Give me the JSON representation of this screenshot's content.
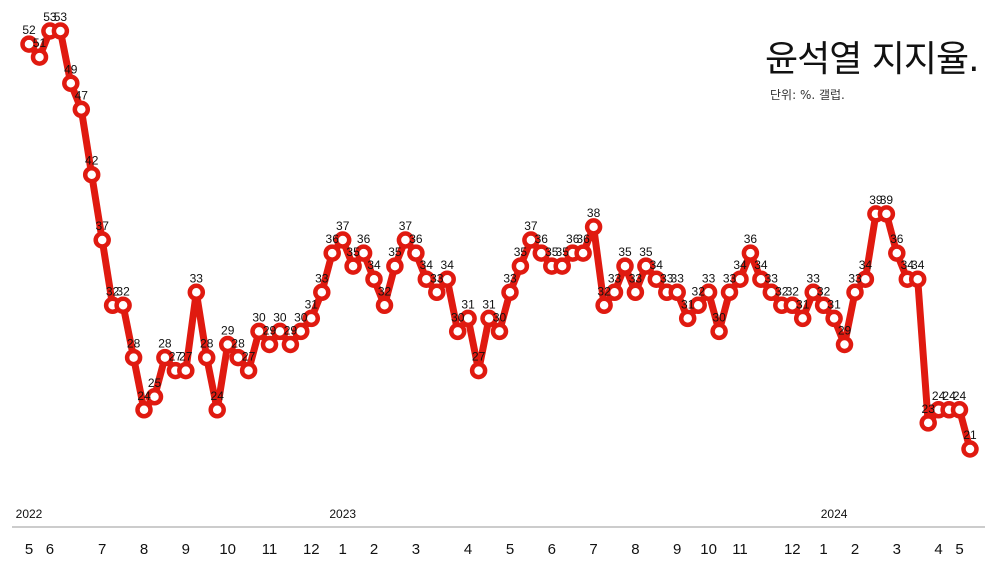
{
  "chart_data": {
    "type": "line",
    "title": "윤석열 지지율.",
    "subtitle": "단위: %. 갤럽.",
    "xlabel": "",
    "ylabel": "",
    "ylim": [
      18,
      56
    ],
    "grid": false,
    "legend": "none",
    "line_color": "#e01a10",
    "point_fill": "#ffffff",
    "series": [
      {
        "values": [
          52,
          51,
          53,
          53,
          49,
          47,
          42,
          37,
          32,
          32,
          28,
          24,
          25,
          28,
          27,
          27,
          33,
          28,
          24,
          29,
          28,
          27,
          30,
          29,
          30,
          29,
          30,
          31,
          33,
          36,
          37,
          35,
          36,
          34,
          32,
          35,
          37,
          36,
          34,
          33,
          34,
          30,
          31,
          27,
          31,
          30,
          33,
          35,
          37,
          36,
          35,
          35,
          36,
          36,
          38,
          32,
          33,
          35,
          33,
          35,
          34,
          33,
          33,
          31,
          32,
          33,
          30,
          33,
          34,
          36,
          34,
          33,
          32,
          32,
          31,
          33,
          32,
          31,
          29,
          33,
          34,
          39,
          39,
          36,
          34,
          34,
          23,
          24,
          24,
          24,
          21
        ]
      }
    ],
    "year_labels": [
      {
        "label": "2022",
        "index": 0
      },
      {
        "label": "2023",
        "index": 30
      },
      {
        "label": "2024",
        "index": 77
      }
    ],
    "month_ticks": [
      {
        "label": "5",
        "index": 0
      },
      {
        "label": "6",
        "index": 2
      },
      {
        "label": "7",
        "index": 7
      },
      {
        "label": "8",
        "index": 11
      },
      {
        "label": "9",
        "index": 15
      },
      {
        "label": "10",
        "index": 19
      },
      {
        "label": "11",
        "index": 23
      },
      {
        "label": "12",
        "index": 27
      },
      {
        "label": "1",
        "index": 30
      },
      {
        "label": "2",
        "index": 33
      },
      {
        "label": "3",
        "index": 37
      },
      {
        "label": "4",
        "index": 42
      },
      {
        "label": "5",
        "index": 46
      },
      {
        "label": "6",
        "index": 50
      },
      {
        "label": "7",
        "index": 54
      },
      {
        "label": "8",
        "index": 58
      },
      {
        "label": "9",
        "index": 62
      },
      {
        "label": "10",
        "index": 65
      },
      {
        "label": "11",
        "index": 68
      },
      {
        "label": "12",
        "index": 73
      },
      {
        "label": "1",
        "index": 76
      },
      {
        "label": "2",
        "index": 79
      },
      {
        "label": "3",
        "index": 83
      },
      {
        "label": "4",
        "index": 87
      },
      {
        "label": "5",
        "index": 89
      }
    ]
  }
}
